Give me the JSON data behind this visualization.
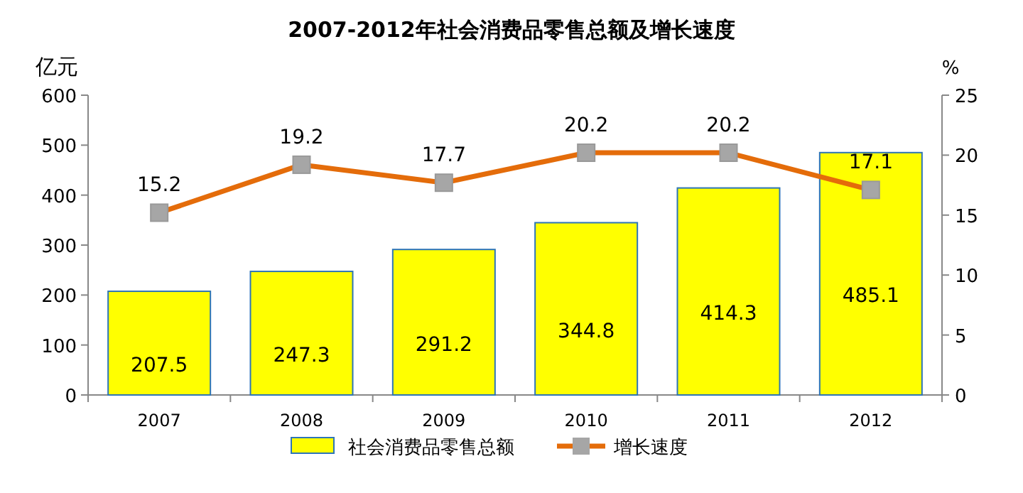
{
  "chart_data": {
    "type": "bar",
    "title": "2007-2012年社会消费品零售总额及增长速度",
    "ylabel": "亿元",
    "y2label": "%",
    "categories": [
      "2007",
      "2008",
      "2009",
      "2010",
      "2011",
      "2012"
    ],
    "series": [
      {
        "name": "社会消费品零售总额",
        "color": "#ffff00",
        "values": [
          207.5,
          247.3,
          291.2,
          344.8,
          414.3,
          485.1
        ]
      },
      {
        "name": "增长速度",
        "type": "line",
        "axis": "y2",
        "color": "#e46c0a",
        "marker": "square",
        "values": [
          15.2,
          19.2,
          17.7,
          20.2,
          20.2,
          17.1
        ]
      }
    ],
    "ylim": [
      0,
      600
    ],
    "yticks": [
      0,
      100,
      200,
      300,
      400,
      500,
      600
    ],
    "y2lim": [
      0,
      25
    ],
    "y2ticks": [
      0,
      5,
      10,
      15,
      20,
      25
    ],
    "data_labels": true,
    "legend": "bottom",
    "grid": false
  }
}
